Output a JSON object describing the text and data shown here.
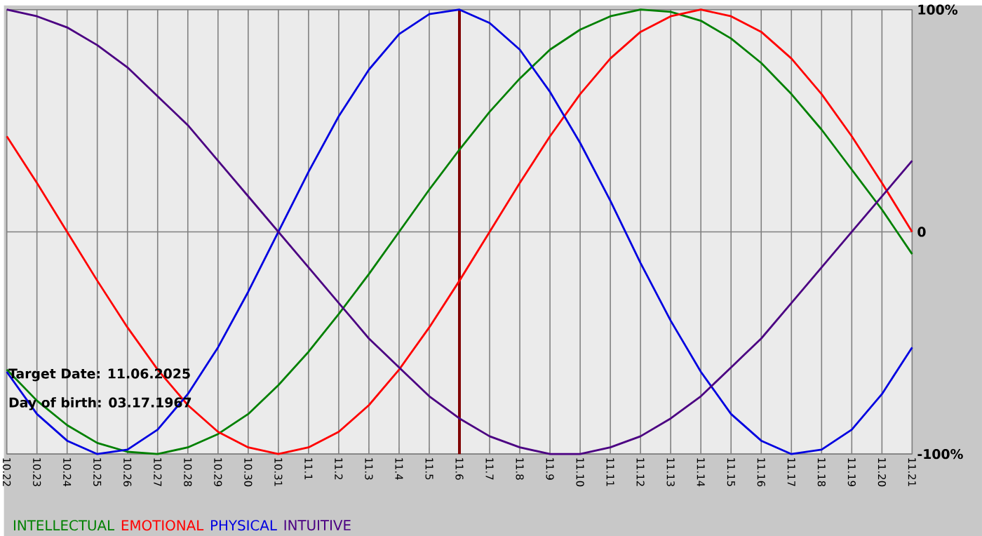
{
  "chart_data": {
    "type": "line",
    "categories": [
      "10.22",
      "10.23",
      "10.24",
      "10.25",
      "10.26",
      "10.27",
      "10.28",
      "10.29",
      "10.30",
      "10.31",
      "11.1",
      "11.2",
      "11.3",
      "11.4",
      "11.5",
      "11.6",
      "11.7",
      "11.8",
      "11.9",
      "11.10",
      "11.11",
      "11.12",
      "11.13",
      "11.14",
      "11.15",
      "11.16",
      "11.17",
      "11.18",
      "11.19",
      "11.20",
      "11.21"
    ],
    "series": [
      {
        "name": "INTELLECTUAL",
        "color": "#008000",
        "values": [
          -62,
          -76,
          -87,
          -95,
          -99,
          -100,
          -97,
          -91,
          -82,
          -69,
          -54,
          -37,
          -19,
          0,
          19,
          37,
          54,
          69,
          82,
          91,
          97,
          100,
          99,
          95,
          87,
          76,
          62,
          46,
          28,
          10,
          -10
        ]
      },
      {
        "name": "EMOTIONAL",
        "color": "#ff0000",
        "values": [
          43,
          22,
          0,
          -22,
          -43,
          -62,
          -78,
          -90,
          -97,
          -100,
          -97,
          -90,
          -78,
          -62,
          -43,
          -22,
          0,
          22,
          43,
          62,
          78,
          90,
          97,
          100,
          97,
          90,
          78,
          62,
          43,
          22,
          0
        ]
      },
      {
        "name": "PHYSICAL",
        "color": "#0000e0",
        "values": [
          -63,
          -82,
          -94,
          -100,
          -98,
          -89,
          -73,
          -52,
          -27,
          0,
          27,
          52,
          73,
          89,
          98,
          100,
          94,
          82,
          63,
          40,
          14,
          -14,
          -40,
          -63,
          -82,
          -94,
          -100,
          -98,
          -89,
          -73,
          -52
        ]
      },
      {
        "name": "INTUITIVE",
        "color": "#4b0082",
        "values": [
          100,
          97,
          92,
          84,
          74,
          61,
          48,
          32,
          16,
          0,
          -16,
          -32,
          -48,
          -61,
          -74,
          -84,
          -92,
          -97,
          -100,
          -100,
          -97,
          -92,
          -84,
          -74,
          -61,
          -48,
          -32,
          -16,
          0,
          16,
          32
        ]
      }
    ],
    "ylim": [
      -100,
      100
    ],
    "yticks": [
      {
        "value": 100,
        "label": "100%"
      },
      0,
      {
        "value": -100,
        "label": "-100%"
      }
    ],
    "grid": true,
    "legend": "bottom",
    "marker": "none",
    "line_style": "solid",
    "ref_lines": [
      {
        "axis": "x",
        "value": "11.6",
        "color": "#800000"
      }
    ],
    "annotations": [
      "Target Date: 11.06.2025",
      "Day of birth: 03.17.1967"
    ]
  }
}
